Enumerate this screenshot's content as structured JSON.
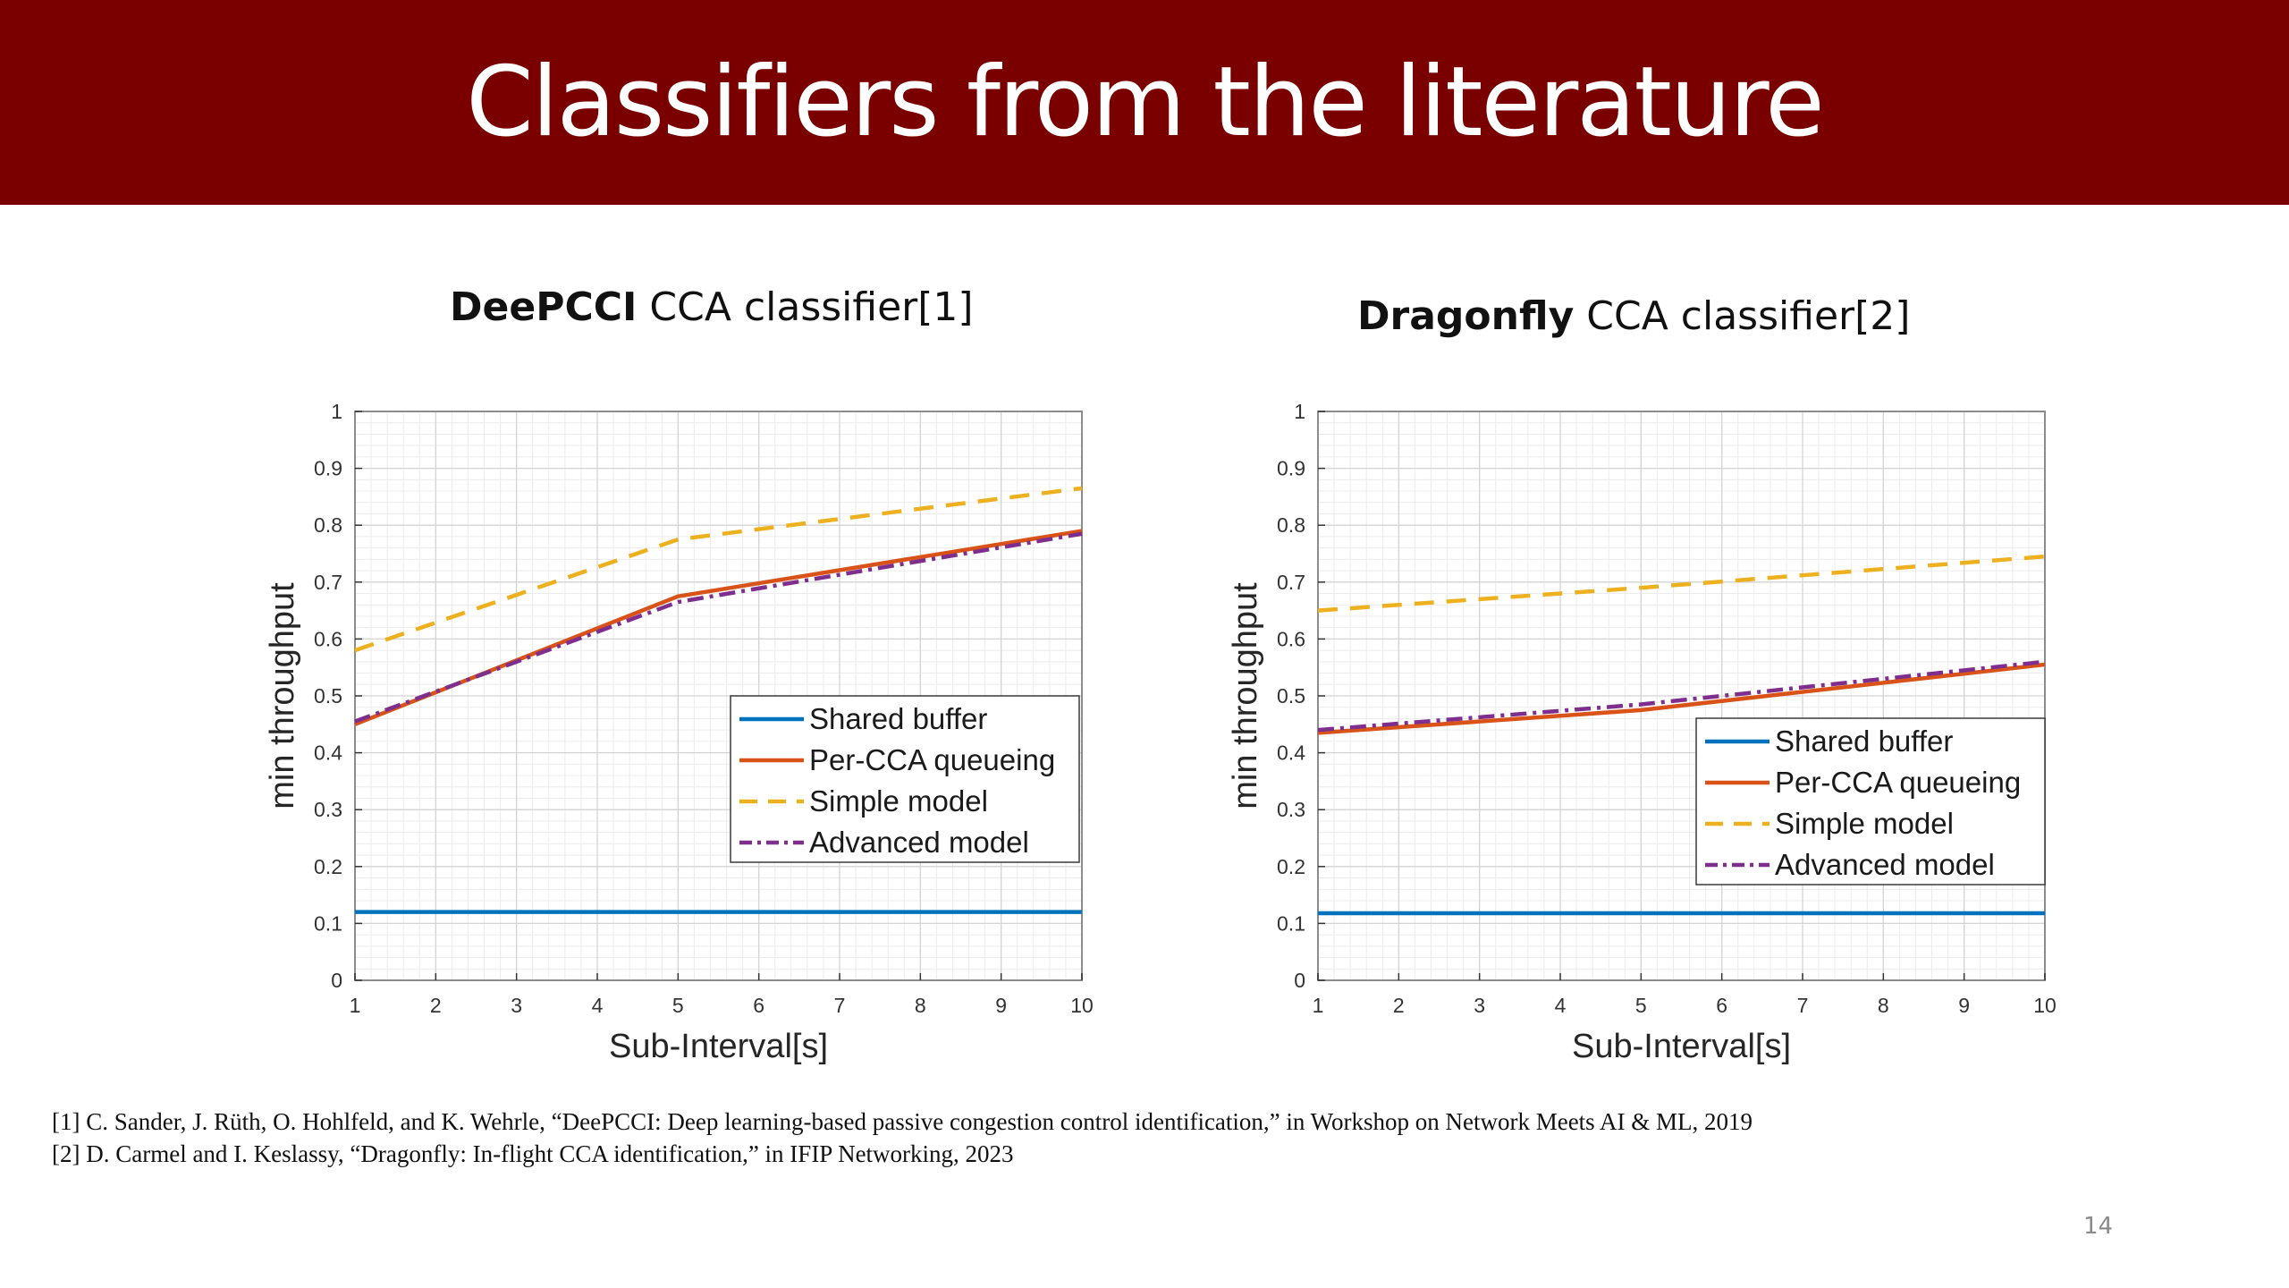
{
  "slide": {
    "title": "Classifiers from the literature",
    "page_number": "14",
    "references": [
      "[1] C. Sander, J. Rüth, O. Hohlfeld, and K. Wehrle, “DeePCCI: Deep learning-based passive congestion control identification,” in Workshop on Network Meets AI & ML, 2019",
      "[2] D. Carmel and I. Keslassy, “Dragonfly: In-flight CCA identification,” in IFIP Networking, 2023"
    ]
  },
  "headings": {
    "left": {
      "bold": "DeePCCI",
      "rest": " CCA classifier[1]"
    },
    "right": {
      "bold": "Dragonfly",
      "rest": " CCA classifier[2]"
    }
  },
  "colors": {
    "shared_buffer": "#0072BD",
    "per_cca": "#D95319",
    "simple": "#EDB120",
    "advanced": "#7E2F8E"
  },
  "chart_data": [
    {
      "type": "line",
      "xlabel": "Sub-Interval[s]",
      "ylabel": "min throughput",
      "xlim": [
        1,
        10
      ],
      "ylim": [
        0,
        1
      ],
      "xticks": [
        1,
        2,
        3,
        4,
        5,
        6,
        7,
        8,
        9,
        10
      ],
      "yticks": [
        0,
        0.1,
        0.2,
        0.3,
        0.4,
        0.5,
        0.6,
        0.7,
        0.8,
        0.9,
        1
      ],
      "grid": true,
      "legend_position": "center-right",
      "x": [
        1,
        5,
        10
      ],
      "series": [
        {
          "name": "Shared buffer",
          "values": [
            0.12,
            0.12,
            0.12
          ],
          "color": "#0072BD",
          "dash": "solid"
        },
        {
          "name": "Per-CCA queueing",
          "values": [
            0.45,
            0.675,
            0.79
          ],
          "color": "#D95319",
          "dash": "solid"
        },
        {
          "name": "Simple model",
          "values": [
            0.58,
            0.775,
            0.865
          ],
          "color": "#EDB120",
          "dash": "dashed"
        },
        {
          "name": "Advanced model",
          "values": [
            0.455,
            0.665,
            0.785
          ],
          "color": "#7E2F8E",
          "dash": "dashdot"
        }
      ]
    },
    {
      "type": "line",
      "xlabel": "Sub-Interval[s]",
      "ylabel": "min throughput",
      "xlim": [
        1,
        10
      ],
      "ylim": [
        0,
        1
      ],
      "xticks": [
        1,
        2,
        3,
        4,
        5,
        6,
        7,
        8,
        9,
        10
      ],
      "yticks": [
        0,
        0.1,
        0.2,
        0.3,
        0.4,
        0.5,
        0.6,
        0.7,
        0.8,
        0.9,
        1
      ],
      "grid": true,
      "legend_position": "lower-right",
      "x": [
        1,
        5,
        10
      ],
      "series": [
        {
          "name": "Shared buffer",
          "values": [
            0.118,
            0.118,
            0.118
          ],
          "color": "#0072BD",
          "dash": "solid"
        },
        {
          "name": "Per-CCA queueing",
          "values": [
            0.435,
            0.475,
            0.555
          ],
          "color": "#D95319",
          "dash": "solid"
        },
        {
          "name": "Simple model",
          "values": [
            0.65,
            0.69,
            0.745
          ],
          "color": "#EDB120",
          "dash": "dashed"
        },
        {
          "name": "Advanced model",
          "values": [
            0.44,
            0.485,
            0.56
          ],
          "color": "#7E2F8E",
          "dash": "dashdot"
        }
      ]
    }
  ]
}
